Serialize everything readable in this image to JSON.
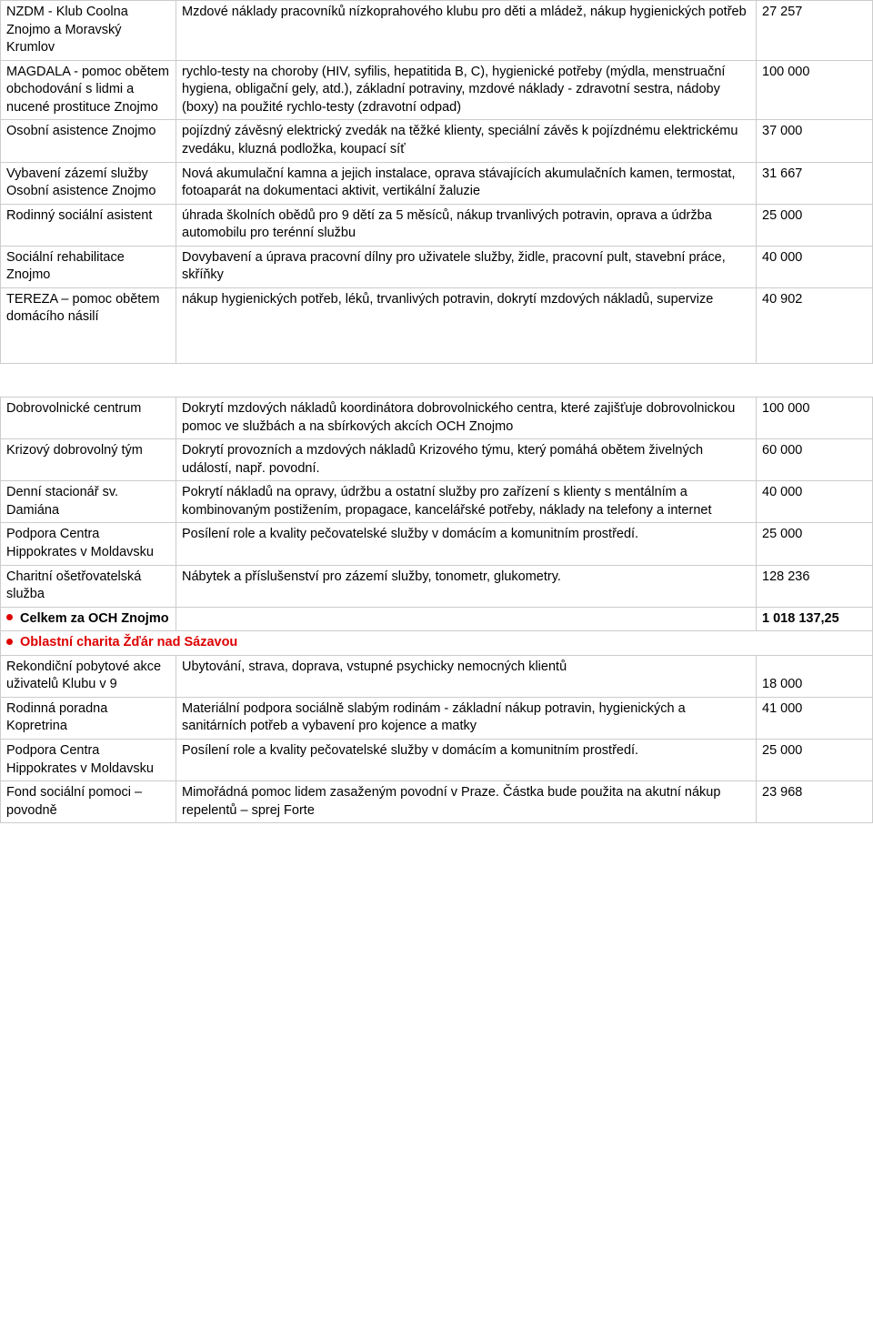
{
  "rows": [
    {
      "c1": "NZDM - Klub Coolna Znojmo a Moravský Krumlov",
      "c2": "Mzdové náklady pracovníků nízkoprahového klubu pro děti a mládež, nákup hygienických potřeb",
      "c3": "27 257"
    },
    {
      "c1": "MAGDALA - pomoc obětem obchodování s lidmi a nucené prostituce Znojmo",
      "c2": "rychlo-testy na choroby (HIV, syfilis, hepatitida B, C), hygienické potřeby (mýdla, menstruační hygiena, obligační gely, atd.), základní potraviny, mzdové náklady - zdravotní sestra, nádoby (boxy) na použité rychlo-testy (zdravotní odpad)",
      "c3": "100 000"
    },
    {
      "c1": "Osobní asistence Znojmo",
      "c2": "pojízdný závěsný elektrický zvedák na těžké klienty, speciální závěs k pojízdnému elektrickému zvedáku, kluzná podložka, koupací síť",
      "c3": "37 000"
    },
    {
      "c1": "Vybavení zázemí služby Osobní asistence Znojmo",
      "c2": "Nová akumulační kamna a jejich instalace, oprava stávajících akumulačních kamen, termostat, fotoaparát na dokumentaci aktivit, vertikální žaluzie",
      "c3": "31 667"
    },
    {
      "c1": "Rodinný sociální asistent",
      "c2": "úhrada školních obědů pro 9 dětí za 5 měsíců, nákup trvanlivých potravin, oprava a údržba automobilu pro terénní službu",
      "c3": "25 000"
    },
    {
      "c1": "Sociální rehabilitace Znojmo",
      "c2": "Dovybavení a úprava pracovní dílny pro uživatele služby, židle, pracovní pult, stavební práce, skříňky",
      "c3": "40 000"
    },
    {
      "c1": "TEREZA – pomoc obětem domácího násilí",
      "c2": "nákup hygienických potřeb, léků, trvanlivých potravin, dokrytí mzdových nákladů, supervize",
      "c3": "40 902",
      "tall": true
    },
    {
      "c1": "Dobrovolnické centrum",
      "c2": "Dokrytí mzdových nákladů koordinátora dobrovolnického centra, které zajišťuje dobrovolnickou pomoc ve službách a na sbírkových akcích OCH Znojmo",
      "c3": "100 000",
      "gapBefore": true
    },
    {
      "c1": "Krizový dobrovolný tým",
      "c2": "Dokrytí provozních a mzdových nákladů Krizového týmu, který pomáhá obětem živelných událostí, např. povodní.",
      "c3": "60 000"
    },
    {
      "c1": "Denní stacionář sv. Damiána",
      "c2": "Pokrytí nákladů na opravy, údržbu a ostatní služby pro zařízení s klienty s mentálním a kombinovaným postižením, propagace, kancelářské potřeby, náklady na telefony a internet",
      "c3": "40 000"
    },
    {
      "c1": "Podpora Centra Hippokrates v Moldavsku",
      "c2": "Posílení role a kvality pečovatelské služby v domácím a komunitním prostředí.",
      "c3": "25 000"
    },
    {
      "c1": "Charitní ošetřovatelská služba",
      "c2": "Nábytek a příslušenství pro zázemí služby, tonometr, glukometry.",
      "c3": "128 236"
    }
  ],
  "totalRow": {
    "c1": "Celkem za OCH Znojmo",
    "c3": "1 018 137,25"
  },
  "sectionHeader": "Oblastní charita Žďár nad Sázavou",
  "rows2": [
    {
      "c1": "Rekondiční pobytové akce uživatelů Klubu v 9",
      "c2": "Ubytování, strava, doprava, vstupné psychicky nemocných klientů",
      "c3": "18 000",
      "c3bottom": true
    },
    {
      "c1": "Rodinná poradna Kopretrina",
      "c2": "Materiální podpora sociálně slabým rodinám - základní nákup potravin, hygienických a sanitárních potřeb a vybavení pro kojence a matky",
      "c3": "41 000"
    },
    {
      "c1": "Podpora Centra Hippokrates v Moldavsku",
      "c2": "Posílení role a kvality pečovatelské služby v domácím a komunitním prostředí.",
      "c3": "25 000"
    },
    {
      "c1": "Fond sociální pomoci – povodně",
      "c2": "Mimořádná pomoc lidem zasaženým povodní v Praze. Částka bude použita na akutní nákup repelentů – sprej Forte",
      "c3": "23 968"
    }
  ]
}
